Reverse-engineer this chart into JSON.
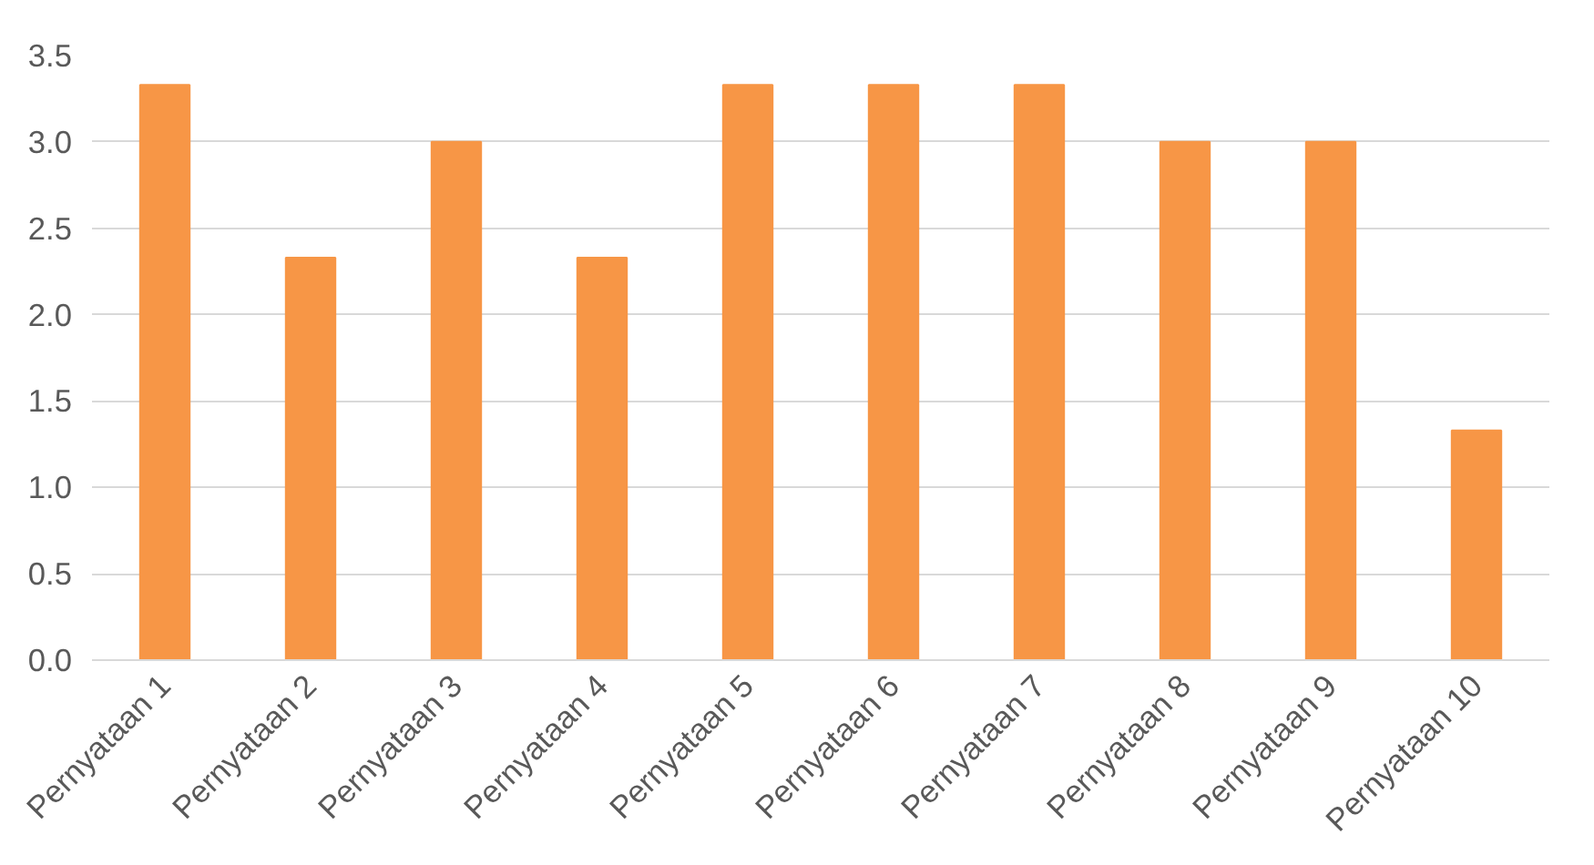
{
  "chart_data": {
    "type": "bar",
    "categories": [
      "Pernyataan 1",
      "Pernyataan 2",
      "Pernyataan 3",
      "Pernyataan 4",
      "Pernyataan 5",
      "Pernyataan 6",
      "Pernyataan 7",
      "Pernyataan 8",
      "Pernyataan 9",
      "Pernyataan 10"
    ],
    "values": [
      3.33,
      2.33,
      3.0,
      2.33,
      3.33,
      3.33,
      3.33,
      3.0,
      3.0,
      1.33
    ],
    "color": "#f79646",
    "ylim": [
      0,
      3.5
    ],
    "yticks": [
      {
        "value": 0,
        "label": "0.0"
      },
      {
        "value": 0.5,
        "label": "0.5"
      },
      {
        "value": 1,
        "label": "1.0"
      },
      {
        "value": 1.5,
        "label": "1.5"
      },
      {
        "value": 2,
        "label": "2.0"
      },
      {
        "value": 2.5,
        "label": "2.5"
      },
      {
        "value": 3,
        "label": "3.0"
      },
      {
        "value": 3.5,
        "label": "3.5"
      }
    ],
    "grid": "y"
  }
}
